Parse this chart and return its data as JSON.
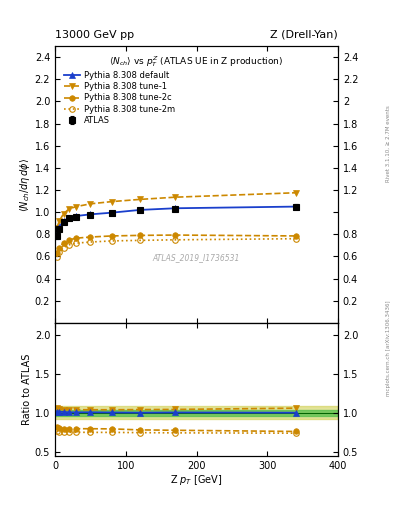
{
  "title_left": "13000 GeV pp",
  "title_right": "Z (Drell-Yan)",
  "plot_title": "$\\langle N_{ch}\\rangle$ vs $p_T^Z$ (ATLAS UE in Z production)",
  "xlabel": "Z $p_T$ [GeV]",
  "ylabel_main": "$\\langle N_{ch}/d\\eta\\,d\\phi\\rangle$",
  "ylabel_ratio": "Ratio to ATLAS",
  "watermark": "ATLAS_2019_I1736531",
  "right_label_top": "Rivet 3.1.10, ≥ 2.7M events",
  "right_label_bot": "mcplots.cern.ch [arXiv:1306.3436]",
  "atlas_x": [
    2.5,
    6,
    12,
    20,
    30,
    50,
    80,
    120,
    170,
    340
  ],
  "atlas_y": [
    0.785,
    0.85,
    0.91,
    0.945,
    0.96,
    0.975,
    0.99,
    1.02,
    1.03,
    1.05
  ],
  "atlas_yerr": [
    0.03,
    0.025,
    0.02,
    0.015,
    0.012,
    0.01,
    0.01,
    0.01,
    0.012,
    0.02
  ],
  "default_x": [
    2.5,
    6,
    12,
    20,
    30,
    50,
    80,
    120,
    170,
    340
  ],
  "default_y": [
    0.8,
    0.865,
    0.92,
    0.95,
    0.965,
    0.98,
    0.995,
    1.02,
    1.035,
    1.05
  ],
  "tune1_x": [
    2.5,
    6,
    12,
    20,
    30,
    50,
    80,
    120,
    170,
    340
  ],
  "tune1_y": [
    0.855,
    0.92,
    0.985,
    1.03,
    1.05,
    1.075,
    1.095,
    1.115,
    1.135,
    1.175
  ],
  "tune2c_x": [
    2.5,
    6,
    12,
    20,
    30,
    50,
    80,
    120,
    170,
    340
  ],
  "tune2c_y": [
    0.635,
    0.68,
    0.72,
    0.75,
    0.765,
    0.775,
    0.785,
    0.79,
    0.793,
    0.785
  ],
  "tune2m_x": [
    2.5,
    6,
    12,
    20,
    30,
    50,
    80,
    120,
    170,
    340
  ],
  "tune2m_y": [
    0.595,
    0.64,
    0.68,
    0.705,
    0.72,
    0.73,
    0.74,
    0.745,
    0.75,
    0.76
  ],
  "ratio_default_y": [
    1.015,
    1.012,
    1.01,
    1.005,
    1.005,
    1.005,
    1.003,
    1.0,
    1.003,
    1.0
  ],
  "ratio_tune1_y": [
    1.06,
    1.045,
    1.04,
    1.04,
    1.038,
    1.038,
    1.038,
    1.04,
    1.042,
    1.058
  ],
  "ratio_tune2c_y": [
    0.82,
    0.805,
    0.795,
    0.793,
    0.795,
    0.795,
    0.793,
    0.78,
    0.775,
    0.76
  ],
  "ratio_tune2m_y": [
    0.768,
    0.758,
    0.752,
    0.75,
    0.75,
    0.748,
    0.748,
    0.745,
    0.742,
    0.738
  ],
  "band_green_lo": 0.96,
  "band_green_hi": 1.04,
  "band_yellow_lo": 0.92,
  "band_yellow_hi": 1.08,
  "color_atlas": "#000000",
  "color_default": "#1a3fcc",
  "color_tune": "#cc8800",
  "color_green": "#44bb44",
  "color_yellow": "#cccc44",
  "xlim": [
    0,
    400
  ],
  "ylim_main": [
    0.0,
    2.5
  ],
  "ylim_ratio": [
    0.45,
    2.15
  ],
  "main_yticks": [
    0.2,
    0.4,
    0.6,
    0.8,
    1.0,
    1.2,
    1.4,
    1.6,
    1.8,
    2.0,
    2.2,
    2.4
  ],
  "ratio_yticks": [
    0.5,
    1.0,
    1.5,
    2.0
  ],
  "xticks": [
    0,
    100,
    200,
    300,
    400
  ]
}
